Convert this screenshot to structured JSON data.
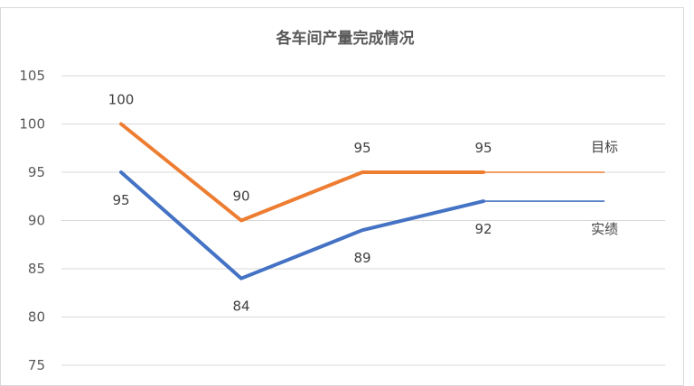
{
  "chart_data": {
    "type": "line",
    "title": "各车间产量完成情况",
    "x": [
      "",
      "",
      "",
      "",
      ""
    ],
    "ylim": [
      75,
      105
    ],
    "yticks": [
      105,
      100,
      95,
      90,
      85,
      80,
      75
    ],
    "grid": true,
    "legend": "series labels at right end of lines",
    "series": [
      {
        "name": "目标",
        "values": [
          100,
          90,
          95,
          95,
          95
        ],
        "data_labels": [
          "100",
          "90",
          "95",
          "95",
          ""
        ],
        "color": "#ED7D31"
      },
      {
        "name": "实绩",
        "values": [
          95,
          84,
          89,
          92,
          92
        ],
        "data_labels": [
          "95",
          "84",
          "89",
          "92",
          ""
        ],
        "color": "#4472C4"
      }
    ]
  }
}
